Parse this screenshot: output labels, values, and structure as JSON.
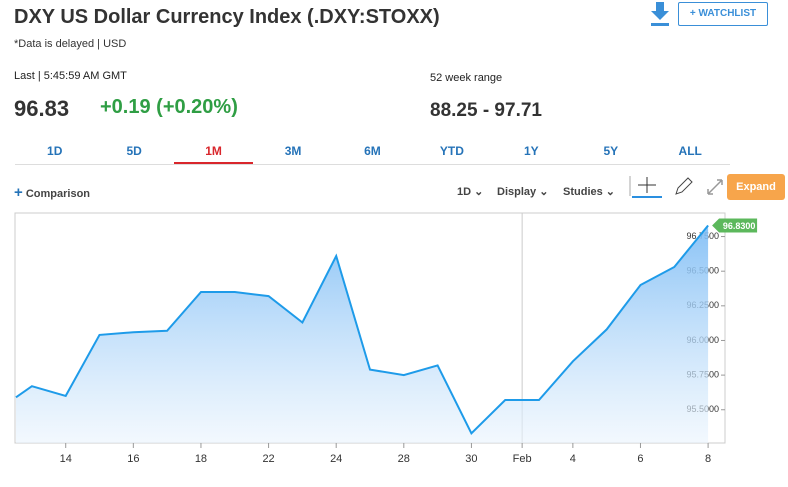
{
  "header": {
    "title": "DXY US Dollar Currency Index (.DXY:STOXX)",
    "subtitle": "*Data is delayed | USD",
    "watchlist": "+ WATCHLIST"
  },
  "quote": {
    "last_label": "Last | 5:45:59 AM GMT",
    "price": "96.83",
    "change": "+0.19 (+0.20%)",
    "range_label": "52 week range",
    "range": "88.25 - 97.71"
  },
  "tabs": {
    "items": [
      "1D",
      "5D",
      "1M",
      "3M",
      "6M",
      "YTD",
      "1Y",
      "5Y",
      "ALL"
    ],
    "active": 2
  },
  "toolbar": {
    "comparison": "Comparison",
    "interval": "1D",
    "display": "Display",
    "studies": "Studies",
    "expand": "Expand"
  },
  "chart_data": {
    "type": "area",
    "x": [
      -0.47,
      0,
      1,
      2,
      3,
      4,
      5,
      6,
      7,
      8,
      9,
      10,
      11,
      12,
      13,
      14,
      15,
      16,
      17,
      18,
      19,
      20
    ],
    "series": [
      {
        "name": "DXY",
        "color": "#1e9be9",
        "values": [
          95.59,
          95.67,
          95.6,
          96.04,
          96.06,
          96.07,
          96.35,
          96.35,
          96.32,
          96.13,
          96.61,
          95.79,
          95.75,
          95.82,
          95.33,
          95.57,
          95.57,
          95.85,
          96.08,
          96.4,
          96.53,
          96.83
        ],
        "value_labels": [
          null,
          null,
          null,
          null,
          null,
          null,
          null,
          null,
          null,
          null,
          null,
          null,
          null,
          null,
          null,
          null,
          null,
          null,
          null,
          null,
          null,
          "96.8300"
        ]
      }
    ],
    "xlim": [
      -0.5,
      20.5
    ],
    "xticks": [
      {
        "value": 1,
        "label": "14"
      },
      {
        "value": 3,
        "label": "16"
      },
      {
        "value": 5,
        "label": "18"
      },
      {
        "value": 7,
        "label": "22"
      },
      {
        "value": 9,
        "label": "24"
      },
      {
        "value": 11,
        "label": "28"
      },
      {
        "value": 13,
        "label": "30"
      },
      {
        "value": 14.5,
        "label": "Feb"
      },
      {
        "value": 16,
        "label": "4"
      },
      {
        "value": 18,
        "label": "6"
      },
      {
        "value": 20,
        "label": "8"
      }
    ],
    "ylim": [
      95.26,
      96.92
    ],
    "yticks": [
      {
        "value": 95.5,
        "label": "95.5000"
      },
      {
        "value": 95.75,
        "label": "95.7500"
      },
      {
        "value": 96,
        "label": "96.0000"
      },
      {
        "value": 96.25,
        "label": "96.2500"
      },
      {
        "value": 96.5,
        "label": "96.5000"
      },
      {
        "value": 96.75,
        "label": "96.7500"
      }
    ]
  }
}
